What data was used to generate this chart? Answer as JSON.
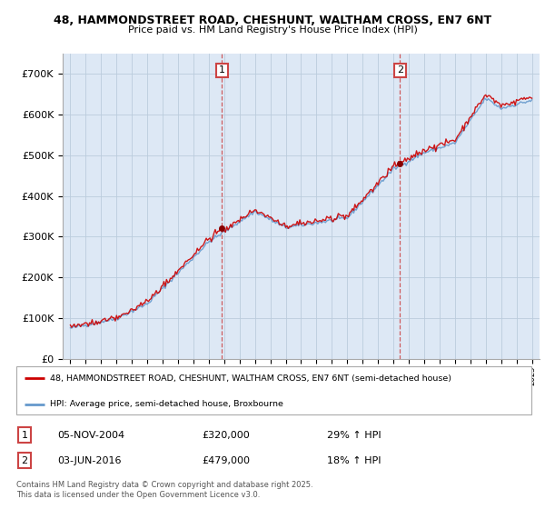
{
  "title_line1": "48, HAMMONDSTREET ROAD, CHESHUNT, WALTHAM CROSS, EN7 6NT",
  "title_line2": "Price paid vs. HM Land Registry's House Price Index (HPI)",
  "legend_line1": "48, HAMMONDSTREET ROAD, CHESHUNT, WALTHAM CROSS, EN7 6NT (semi-detached house)",
  "legend_line2": "HPI: Average price, semi-detached house, Broxbourne",
  "footnote": "Contains HM Land Registry data © Crown copyright and database right 2025.\nThis data is licensed under the Open Government Licence v3.0.",
  "sale1_date": "05-NOV-2004",
  "sale1_price": "£320,000",
  "sale1_hpi": "29% ↑ HPI",
  "sale1_year": 2004.85,
  "sale1_value": 320000,
  "sale2_date": "03-JUN-2016",
  "sale2_price": "£479,000",
  "sale2_hpi": "18% ↑ HPI",
  "sale2_year": 2016.42,
  "sale2_value": 479000,
  "hpi_color": "#6699cc",
  "price_color": "#cc0000",
  "marker_color": "#880000",
  "dashed_color": "#cc4444",
  "bg_color": "#ffffff",
  "chart_bg": "#dde8f5",
  "grid_color": "#bbccdd",
  "ylim_min": 0,
  "ylim_max": 750000,
  "yticks": [
    0,
    100000,
    200000,
    300000,
    400000,
    500000,
    600000,
    700000
  ],
  "xlim_min": 1994.5,
  "xlim_max": 2025.5
}
